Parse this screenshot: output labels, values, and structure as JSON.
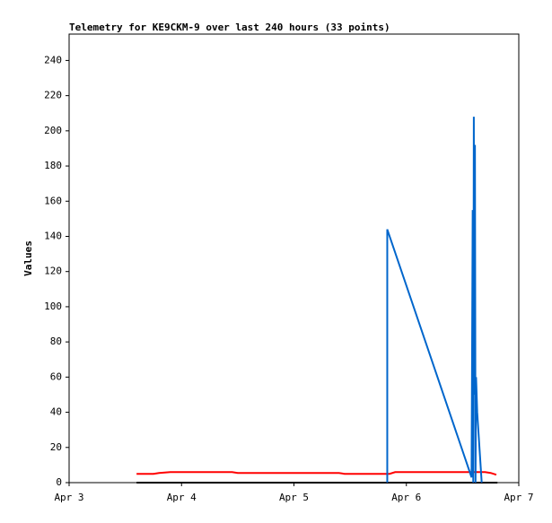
{
  "chart_data": {
    "type": "line",
    "title": "Telemetry for KE9CKM-9 over last 240 hours (33 points)",
    "y_label": "Values",
    "xlim": [
      3,
      7
    ],
    "xticks": [
      {
        "value": 3,
        "label": "Apr 3"
      },
      {
        "value": 4,
        "label": "Apr 4"
      },
      {
        "value": 5,
        "label": "Apr 5"
      },
      {
        "value": 6,
        "label": "Apr 6"
      },
      {
        "value": 7,
        "label": "Apr 7"
      }
    ],
    "ylim": [
      0,
      255
    ],
    "yticks": [
      0,
      20,
      40,
      60,
      80,
      100,
      120,
      140,
      160,
      180,
      200,
      220,
      240
    ],
    "series": [
      {
        "color": "#ff0000",
        "x": [
          3.6,
          3.75,
          3.8,
          3.9,
          4.45,
          4.5,
          5.4,
          5.45,
          5.85,
          5.9,
          6.7,
          6.75,
          6.8
        ],
        "values": [
          5,
          5,
          5.5,
          6,
          6,
          5.5,
          5.5,
          5,
          5,
          6,
          6,
          5.5,
          4.5
        ]
      },
      {
        "color": "#000000",
        "x": [
          3.6,
          6.81
        ],
        "values": [
          0,
          0
        ]
      },
      {
        "color": "#0066cc",
        "x": [
          5.83,
          5.83,
          6.58,
          6.59,
          6.595,
          6.6,
          6.605,
          6.61,
          6.615,
          6.62,
          6.63,
          6.67
        ],
        "values": [
          0,
          144,
          3,
          155,
          0,
          208,
          50,
          192,
          0,
          60,
          40,
          0
        ]
      }
    ]
  }
}
